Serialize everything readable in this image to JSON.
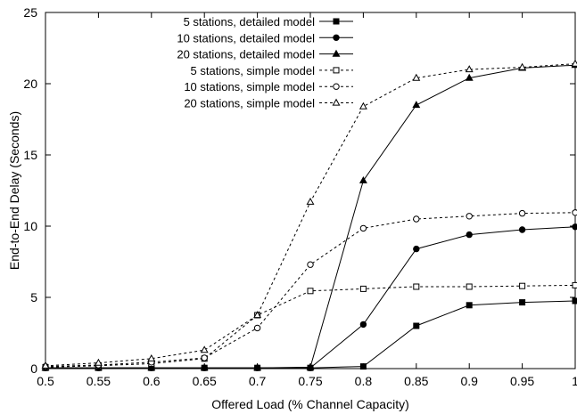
{
  "chart_data": {
    "type": "line",
    "xlabel": "Offered Load (% Channel Capacity)",
    "ylabel": "End-to-End Delay (Seconds)",
    "xlim": [
      0.5,
      1.0
    ],
    "ylim": [
      0,
      25
    ],
    "x": [
      0.5,
      0.55,
      0.6,
      0.65,
      0.7,
      0.75,
      0.8,
      0.85,
      0.9,
      0.95,
      1.0
    ],
    "x_ticks": [
      "0.5",
      "0.55",
      "0.6",
      "0.65",
      "0.7",
      "0.75",
      "0.8",
      "0.85",
      "0.9",
      "0.95",
      "1"
    ],
    "y_ticks": [
      "0",
      "5",
      "10",
      "15",
      "20",
      "25"
    ],
    "grid": false,
    "legend_position": "top-left",
    "series": [
      {
        "name": "5 stations, detailed model",
        "marker": "filled-square",
        "dash": "solid",
        "values": [
          0.05,
          0.05,
          0.05,
          0.05,
          0.05,
          0.05,
          0.15,
          3.0,
          4.45,
          4.65,
          4.75
        ]
      },
      {
        "name": "10 stations, detailed model",
        "marker": "filled-circle",
        "dash": "solid",
        "values": [
          0.05,
          0.05,
          0.05,
          0.05,
          0.05,
          0.05,
          3.1,
          8.4,
          9.4,
          9.75,
          9.95
        ]
      },
      {
        "name": "20 stations, detailed model",
        "marker": "filled-triangle",
        "dash": "solid",
        "values": [
          0.05,
          0.05,
          0.05,
          0.05,
          0.05,
          0.1,
          13.2,
          18.5,
          20.4,
          21.1,
          21.3
        ]
      },
      {
        "name": "5 stations, simple model",
        "marker": "open-square",
        "dash": "dashed",
        "values": [
          0.1,
          0.2,
          0.35,
          0.7,
          3.75,
          5.45,
          5.6,
          5.75,
          5.75,
          5.8,
          5.85
        ]
      },
      {
        "name": "10 stations, simple model",
        "marker": "open-circle",
        "dash": "dashed",
        "values": [
          0.15,
          0.25,
          0.45,
          0.75,
          2.85,
          7.3,
          9.85,
          10.5,
          10.7,
          10.9,
          10.95
        ]
      },
      {
        "name": "20 stations, simple model",
        "marker": "open-triangle",
        "dash": "dashed",
        "values": [
          0.2,
          0.4,
          0.7,
          1.3,
          3.75,
          11.7,
          18.4,
          20.4,
          21.0,
          21.15,
          21.4
        ]
      }
    ]
  }
}
